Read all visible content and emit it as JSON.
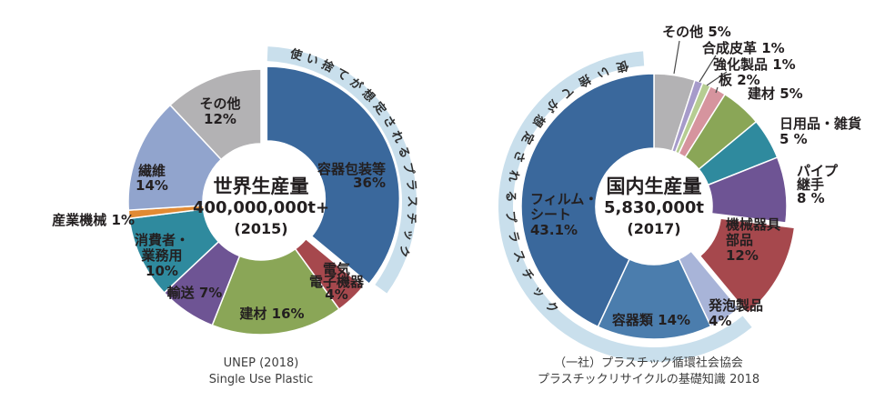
{
  "page": {
    "background": "#ffffff",
    "text_color": "#231f20"
  },
  "chart_data": [
    {
      "type": "pie",
      "subtype": "donut",
      "title": "世界生産量",
      "center": {
        "title": "世界生産量",
        "total": "400,000,000t+",
        "year": "(2015)"
      },
      "source_lines": [
        "UNEP (2018)",
        "Single Use Plastic"
      ],
      "outer_ring": {
        "label": "使い捨てが想定されるプラスチック",
        "color": "#c9dfec",
        "covers": "容器包装等"
      },
      "unit": "%",
      "segments": [
        {
          "name": "容器包装等",
          "value": 36,
          "color": "#3a689c",
          "display": [
            "容器包装等",
            "36%"
          ],
          "exploded": true
        },
        {
          "name": "電気電子機器",
          "value": 4,
          "color": "#a6484d",
          "display": [
            "電気",
            "電子機器",
            "4%"
          ]
        },
        {
          "name": "建材",
          "value": 16,
          "color": "#8aa657",
          "display": [
            "建材 16%"
          ]
        },
        {
          "name": "輸送",
          "value": 7,
          "color": "#6e5494",
          "display": [
            "輸送 7%"
          ]
        },
        {
          "name": "消費者・業務用",
          "value": 10,
          "color": "#2f8a9e",
          "display": [
            "消費者・",
            "業務用",
            "10%"
          ]
        },
        {
          "name": "産業機械",
          "value": 1,
          "color": "#e18a33",
          "display": [
            "産業機械 1%"
          ]
        },
        {
          "name": "繊維",
          "value": 14,
          "color": "#91a4cd",
          "display": [
            "繊維",
            "14%"
          ]
        },
        {
          "name": "その他",
          "value": 12,
          "color": "#b3b2b4",
          "display": [
            "その他",
            "12%"
          ]
        }
      ]
    },
    {
      "type": "pie",
      "subtype": "donut",
      "title": "国内生産量",
      "center": {
        "title": "国内生産量",
        "total": "5,830,000t",
        "year": "(2017)"
      },
      "source_lines": [
        "（一社）プラスチック循環社会協会",
        "プラスチックリサイクルの基礎知識 2018"
      ],
      "outer_ring": {
        "label": "使い捨てが想定されるプラスチック",
        "color": "#c9dfec",
        "covers": "フィルム・シート、容器類、発泡製品"
      },
      "unit": "%",
      "segments": [
        {
          "name": "その他",
          "value": 5,
          "color": "#b3b2b4",
          "display": [
            "その他 5%"
          ]
        },
        {
          "name": "合成皮革",
          "value": 1,
          "color": "#a69bca",
          "display": [
            "合成皮革 1%"
          ]
        },
        {
          "name": "強化製品",
          "value": 1,
          "color": "#b6cd92",
          "display": [
            "強化製品 1%"
          ]
        },
        {
          "name": "板",
          "value": 2,
          "color": "#d6949e",
          "display": [
            "板 2%"
          ]
        },
        {
          "name": "建材",
          "value": 5,
          "color": "#8aa657",
          "display": [
            "建材 5%"
          ]
        },
        {
          "name": "日用品・雑貨",
          "value": 5,
          "color": "#2f8a9e",
          "display": [
            "日用品・雑貨",
            "5 %"
          ]
        },
        {
          "name": "パイプ継手",
          "value": 8,
          "color": "#6e5494",
          "display": [
            "パイプ",
            "継手",
            "8 %"
          ]
        },
        {
          "name": "機械器具部品",
          "value": 12,
          "color": "#a6484d",
          "display": [
            "機械器具",
            "部品",
            "12%"
          ],
          "exploded": true
        },
        {
          "name": "発泡製品",
          "value": 4,
          "color": "#a8b4d8",
          "display": [
            "発泡製品",
            "4%"
          ]
        },
        {
          "name": "容器類",
          "value": 14,
          "color": "#4b7dad",
          "display": [
            "容器類 14%"
          ]
        },
        {
          "name": "フィルム・シート",
          "value": 43.1,
          "color": "#3a689c",
          "display": [
            "フィルム・",
            "シート",
            "43.1%"
          ]
        }
      ]
    }
  ]
}
